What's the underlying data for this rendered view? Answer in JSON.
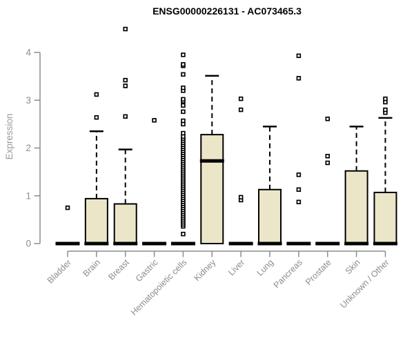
{
  "title": "ENSG00000226131 - AC073465.3",
  "y_axis": {
    "label": "Expression",
    "tick_labels": [
      "0",
      "1",
      "2",
      "3",
      "4"
    ]
  },
  "x_axis": {
    "tick_labels": [
      "Bladder",
      "Brain",
      "Breast",
      "Gastric",
      "Hematopoietic cells",
      "Kidney",
      "Liver",
      "Lung",
      "Pancreas",
      "Prostate",
      "Skin",
      "Unknown / Other"
    ]
  },
  "colors": {
    "box_fill": "#ECE6C9",
    "box_border": "#000000",
    "median": "#000000",
    "whisker": "#000000",
    "outlier_stroke": "#000000",
    "outlier_fill": "#ffffff",
    "axis": "#8C8C8C",
    "tick_label": "#8C8C8C",
    "title_color": "#000000",
    "background": "#ffffff"
  },
  "chart_data": {
    "type": "boxplot",
    "title": "ENSG00000226131 - AC073465.3",
    "xlabel": "",
    "ylabel": "Expression",
    "ylim": [
      0,
      4.6
    ],
    "yticks": [
      0,
      1,
      2,
      3,
      4
    ],
    "grid": false,
    "legend": "none",
    "categories": [
      "Bladder",
      "Brain",
      "Breast",
      "Gastric",
      "Hematopoietic cells",
      "Kidney",
      "Liver",
      "Lung",
      "Pancreas",
      "Prostate",
      "Skin",
      "Unknown / Other"
    ],
    "series": [
      {
        "name": "Bladder",
        "q1": 0,
        "median": 0,
        "q3": 0,
        "whisker_low": 0,
        "whisker_high": 0,
        "outliers": [
          0.75
        ]
      },
      {
        "name": "Brain",
        "q1": 0,
        "median": 0,
        "q3": 0.94,
        "whisker_low": 0,
        "whisker_high": 2.35,
        "outliers": [
          2.64,
          3.12
        ]
      },
      {
        "name": "Breast",
        "q1": 0,
        "median": 0,
        "q3": 0.83,
        "whisker_low": 0,
        "whisker_high": 1.97,
        "outliers": [
          2.66,
          3.3,
          3.42,
          4.49
        ]
      },
      {
        "name": "Gastric",
        "q1": 0,
        "median": 0,
        "q3": 0,
        "whisker_low": 0,
        "whisker_high": 0,
        "outliers": [
          2.58
        ]
      },
      {
        "name": "Hematopoietic cells",
        "q1": 0,
        "median": 0,
        "q3": 0,
        "whisker_low": 0,
        "whisker_high": 0,
        "outliers": [
          0.2,
          2.31,
          2.5,
          2.57,
          2.76,
          2.89,
          2.98,
          3.02,
          3.2,
          3.26,
          3.54,
          3.72,
          3.75,
          3.95
        ],
        "dense_outlier_range": {
          "min": 0.36,
          "max": 2.24,
          "approx_count": 45
        }
      },
      {
        "name": "Kidney",
        "q1": 0,
        "median": 1.73,
        "q3": 2.28,
        "whisker_low": 0,
        "whisker_high": 3.51,
        "outliers": []
      },
      {
        "name": "Liver",
        "q1": 0,
        "median": 0,
        "q3": 0,
        "whisker_low": 0,
        "whisker_high": 0,
        "outliers": [
          0.91,
          0.97,
          2.8,
          3.03
        ]
      },
      {
        "name": "Lung",
        "q1": 0,
        "median": 0,
        "q3": 1.13,
        "whisker_low": 0,
        "whisker_high": 2.45,
        "outliers": []
      },
      {
        "name": "Pancreas",
        "q1": 0,
        "median": 0,
        "q3": 0,
        "whisker_low": 0,
        "whisker_high": 0,
        "outliers": [
          0.87,
          1.13,
          1.44,
          3.46,
          3.93
        ]
      },
      {
        "name": "Prostate",
        "q1": 0,
        "median": 0,
        "q3": 0,
        "whisker_low": 0,
        "whisker_high": 0,
        "outliers": [
          1.69,
          1.83,
          2.61
        ]
      },
      {
        "name": "Skin",
        "q1": 0,
        "median": 0,
        "q3": 1.52,
        "whisker_low": 0,
        "whisker_high": 2.45,
        "outliers": []
      },
      {
        "name": "Unknown / Other",
        "q1": 0,
        "median": 0,
        "q3": 1.07,
        "whisker_low": 0,
        "whisker_high": 2.63,
        "outliers": [
          2.74,
          2.8,
          2.96,
          3.03
        ]
      }
    ]
  }
}
